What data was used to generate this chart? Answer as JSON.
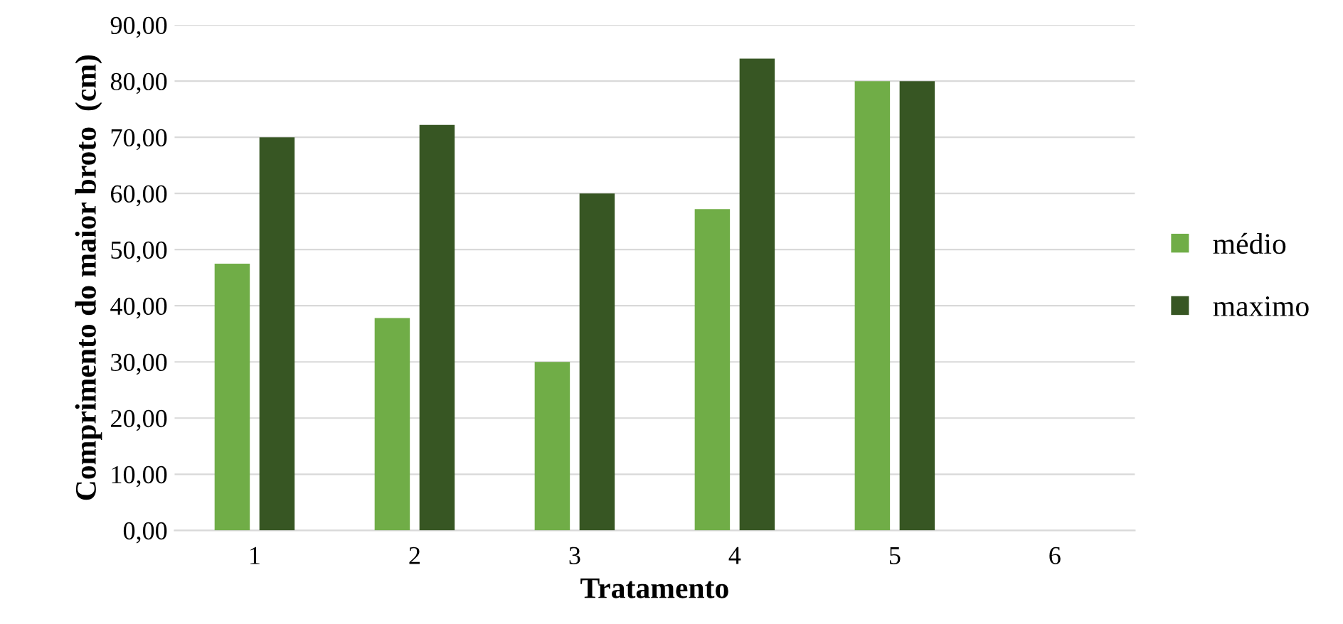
{
  "chart_data": {
    "type": "bar",
    "xlabel": "Tratamento",
    "ylabel": "Comprimento do maior broto  (cm)",
    "categories": [
      "1",
      "2",
      "3",
      "4",
      "5",
      "6"
    ],
    "series": [
      {
        "name": "médio",
        "color": "#70ad47",
        "values": [
          47.5,
          37.8,
          30,
          57.2,
          80,
          null
        ]
      },
      {
        "name": "maximo",
        "color": "#375623",
        "values": [
          70,
          72.2,
          60,
          84,
          80,
          null
        ]
      }
    ],
    "ylim": [
      0,
      90
    ],
    "yticks": [
      {
        "value": 0,
        "label": "0,00"
      },
      {
        "value": 10,
        "label": "10,00"
      },
      {
        "value": 20,
        "label": "20,00"
      },
      {
        "value": 30,
        "label": "30,00"
      },
      {
        "value": 40,
        "label": "40,00"
      },
      {
        "value": 50,
        "label": "50,00"
      },
      {
        "value": 60,
        "label": "60,00"
      },
      {
        "value": 70,
        "label": "70,00"
      },
      {
        "value": 80,
        "label": "80,00"
      },
      {
        "value": 90,
        "label": "90,00"
      }
    ],
    "grid": "y",
    "legend": "right"
  }
}
